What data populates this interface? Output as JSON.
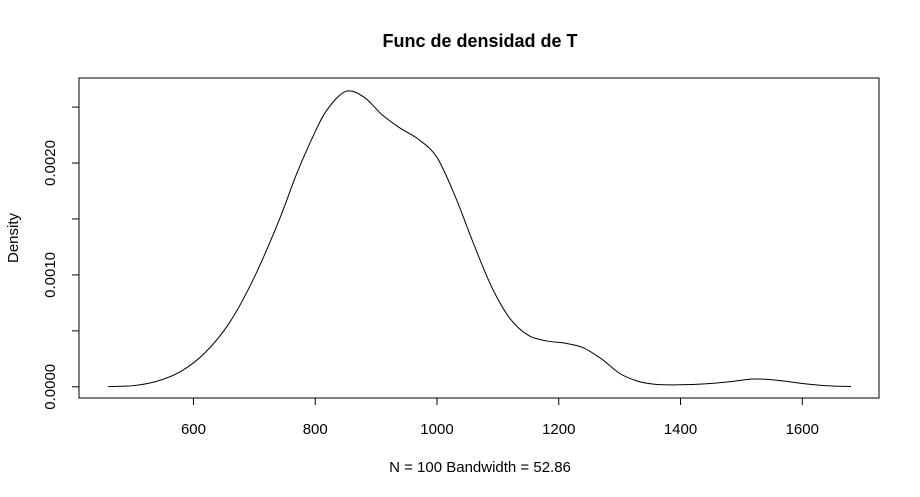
{
  "chart_data": {
    "type": "line",
    "title": "Func de densidad de T",
    "xlabel": "N = 100   Bandwidth = 52.86",
    "ylabel": "Density",
    "x_ticks": [
      600,
      800,
      1000,
      1200,
      1400,
      1600
    ],
    "x_tick_labels": [
      "600",
      "800",
      "1000",
      "1200",
      "1400",
      "1600"
    ],
    "y_ticks": [
      0,
      0.0005,
      0.001,
      0.0015,
      0.002,
      0.0025
    ],
    "y_tick_labels": [
      "0.0000",
      "",
      "0.0010",
      "",
      "0.0020",
      ""
    ],
    "xlim": [
      412,
      1726
    ],
    "ylim": [
      -0.0001,
      0.00276
    ],
    "grid": false,
    "series": [
      {
        "x": [
          460,
          500,
          540,
          580,
          620,
          660,
          700,
          740,
          770,
          800,
          820,
          850,
          880,
          910,
          940,
          970,
          1000,
          1030,
          1060,
          1090,
          1120,
          1150,
          1180,
          1210,
          1240,
          1270,
          1300,
          1330,
          1360,
          1400,
          1440,
          1480,
          1520,
          1560,
          1600,
          1640,
          1680
        ],
        "y": [
          2e-06,
          1e-05,
          5e-05,
          0.00014,
          0.00031,
          0.00058,
          0.00098,
          0.00148,
          0.00191,
          0.00228,
          0.00248,
          0.00264,
          0.00259,
          0.00243,
          0.00231,
          0.00221,
          0.00205,
          0.0017,
          0.00128,
          0.00089,
          0.00061,
          0.00046,
          0.00041,
          0.00039,
          0.00035,
          0.00025,
          0.00012,
          5e-05,
          2.2e-05,
          1.8e-05,
          2.6e-05,
          4.5e-05,
          7e-05,
          5.8e-05,
          3e-05,
          1e-05,
          3e-06
        ]
      }
    ]
  }
}
